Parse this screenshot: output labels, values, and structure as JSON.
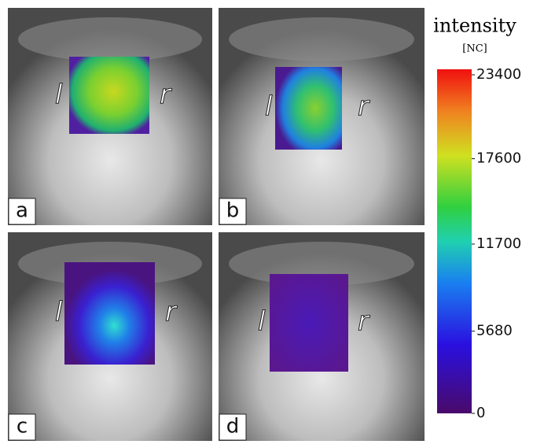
{
  "panels": [
    {
      "label": "a",
      "left": "l",
      "right": "r"
    },
    {
      "label": "b",
      "left": "l",
      "right": "r"
    },
    {
      "label": "c",
      "left": "l",
      "right": "r"
    },
    {
      "label": "d",
      "left": "l",
      "right": "r"
    }
  ],
  "colorbar": {
    "title": "intensity",
    "unit": "[NC]",
    "ticks": [
      23400,
      17600,
      11700,
      5680,
      0
    ]
  }
}
